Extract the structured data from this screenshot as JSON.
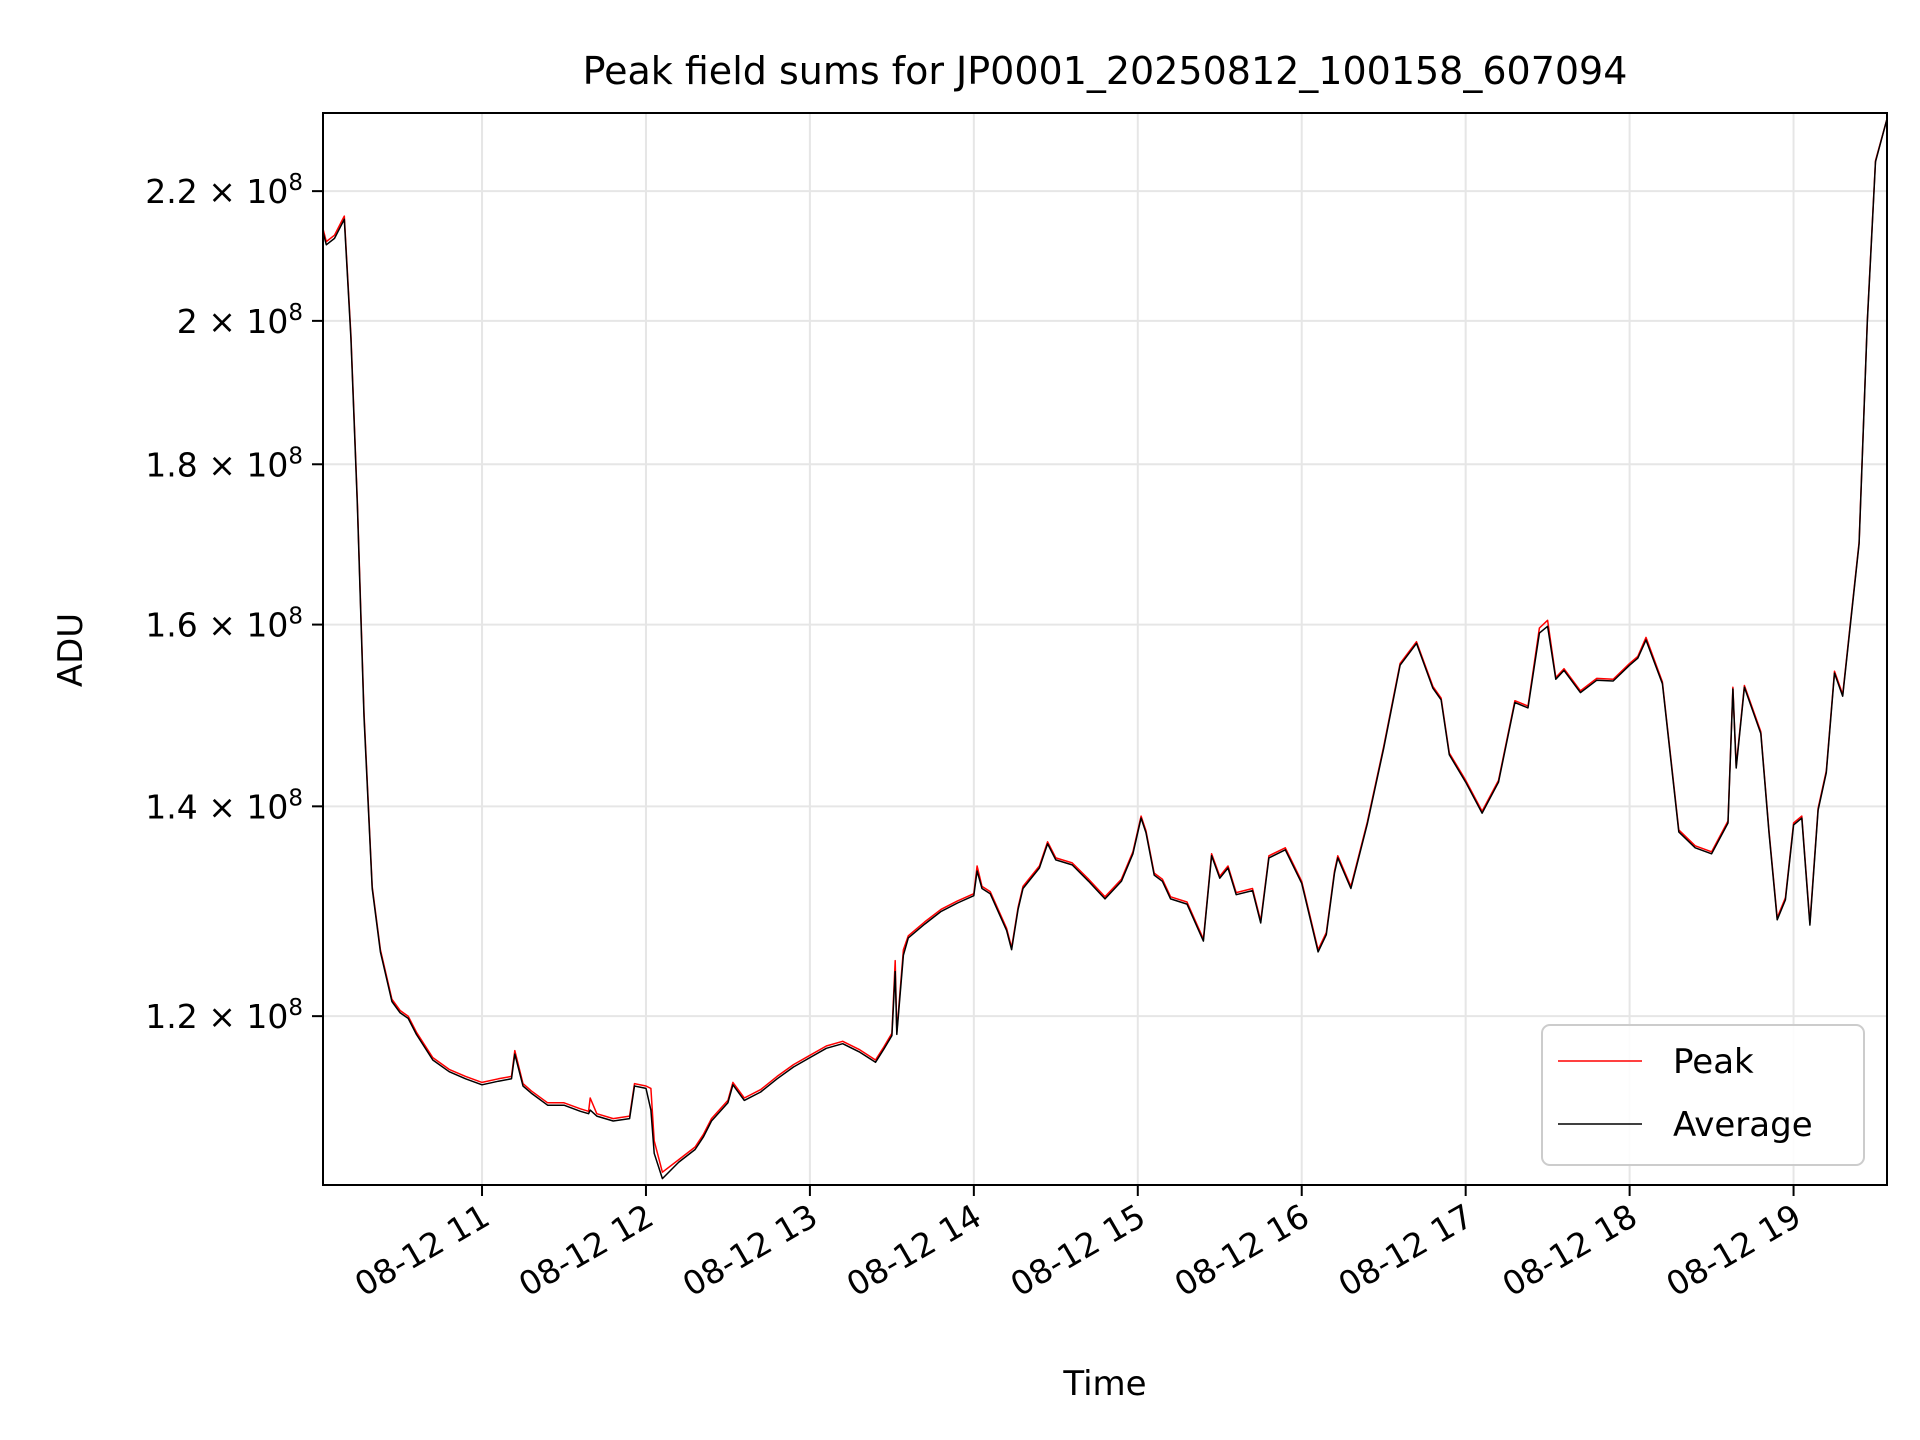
{
  "chart_data": {
    "type": "line",
    "title": "Peak field sums for JP0001_20250812_100158_607094",
    "xlabel": "Time",
    "ylabel": "ADU",
    "x_unit": "hour of 2025-08-12",
    "xlim": [
      10.03,
      19.57
    ],
    "x_ticks": [
      {
        "value": 11,
        "label": "08-12 11"
      },
      {
        "value": 12,
        "label": "08-12 12"
      },
      {
        "value": 13,
        "label": "08-12 13"
      },
      {
        "value": 14,
        "label": "08-12 14"
      },
      {
        "value": 15,
        "label": "08-12 15"
      },
      {
        "value": 16,
        "label": "08-12 16"
      },
      {
        "value": 17,
        "label": "08-12 17"
      },
      {
        "value": 18,
        "label": "08-12 18"
      },
      {
        "value": 19,
        "label": "08-12 19"
      }
    ],
    "y_scale": "log",
    "ylim": [
      106000000,
      233000000
    ],
    "y_ticks": [
      {
        "value": 120000000,
        "mantissa": "1.2",
        "exponent": "8"
      },
      {
        "value": 140000000,
        "mantissa": "1.4",
        "exponent": "8"
      },
      {
        "value": 160000000,
        "mantissa": "1.6",
        "exponent": "8"
      },
      {
        "value": 180000000,
        "mantissa": "1.8",
        "exponent": "8"
      },
      {
        "value": 200000000,
        "mantissa": "2",
        "exponent": "8"
      },
      {
        "value": 220000000,
        "mantissa": "2.2",
        "exponent": "8"
      }
    ],
    "grid": true,
    "legend_position": "lower-right",
    "series": [
      {
        "name": "Peak",
        "color": "#ff0000",
        "x": [
          10.03,
          10.05,
          10.1,
          10.16,
          10.2,
          10.24,
          10.28,
          10.33,
          10.38,
          10.45,
          10.5,
          10.55,
          10.6,
          10.7,
          10.8,
          10.9,
          11.0,
          11.1,
          11.18,
          11.2,
          11.25,
          11.3,
          11.4,
          11.5,
          11.6,
          11.65,
          11.66,
          11.7,
          11.8,
          11.9,
          11.93,
          12.0,
          12.03,
          12.05,
          12.1,
          12.2,
          12.3,
          12.35,
          12.4,
          12.5,
          12.53,
          12.6,
          12.7,
          12.8,
          12.9,
          13.0,
          13.1,
          13.2,
          13.3,
          13.4,
          13.45,
          13.5,
          13.52,
          13.53,
          13.57,
          13.6,
          13.7,
          13.8,
          13.9,
          14.0,
          14.02,
          14.05,
          14.1,
          14.2,
          14.23,
          14.27,
          14.3,
          14.4,
          14.45,
          14.5,
          14.6,
          14.7,
          14.8,
          14.9,
          14.97,
          15.02,
          15.05,
          15.1,
          15.15,
          15.2,
          15.3,
          15.4,
          15.45,
          15.5,
          15.55,
          15.6,
          15.7,
          15.75,
          15.8,
          15.9,
          16.0,
          16.1,
          16.15,
          16.2,
          16.22,
          16.3,
          16.4,
          16.5,
          16.6,
          16.7,
          16.8,
          16.85,
          16.9,
          17.0,
          17.1,
          17.2,
          17.3,
          17.38,
          17.45,
          17.5,
          17.55,
          17.6,
          17.7,
          17.8,
          17.9,
          18.0,
          18.05,
          18.1,
          18.2,
          18.3,
          18.4,
          18.5,
          18.6,
          18.63,
          18.65,
          18.7,
          18.8,
          18.85,
          18.9,
          18.95,
          19.0,
          19.05,
          19.1,
          19.15,
          19.2,
          19.25,
          19.3,
          19.4,
          19.45,
          19.5,
          19.57
        ],
        "values": [
          214000000,
          212000000,
          213000000,
          216000000,
          198000000,
          175000000,
          150000000,
          132000000,
          126000000,
          121500000,
          120500000,
          120000000,
          118600000,
          116400000,
          115400000,
          114800000,
          114300000,
          114600000,
          114800000,
          117000000,
          114200000,
          113600000,
          112600000,
          112600000,
          112100000,
          111900000,
          113000000,
          111700000,
          111300000,
          111500000,
          114200000,
          114000000,
          113800000,
          109500000,
          107000000,
          108000000,
          109000000,
          110000000,
          111300000,
          112800000,
          114300000,
          113000000,
          113700000,
          114800000,
          115800000,
          116600000,
          117400000,
          117800000,
          117100000,
          116200000,
          117300000,
          118500000,
          125000000,
          118600000,
          126000000,
          127300000,
          128600000,
          129800000,
          130600000,
          131300000,
          134000000,
          132000000,
          131500000,
          128000000,
          126200000,
          130000000,
          132000000,
          134000000,
          136400000,
          134800000,
          134300000,
          132700000,
          131000000,
          132700000,
          135400000,
          139000000,
          137500000,
          133300000,
          132700000,
          131000000,
          130500000,
          127000000,
          135200000,
          133000000,
          134000000,
          131400000,
          131800000,
          128700000,
          135000000,
          135800000,
          132500000,
          126000000,
          127600000,
          133500000,
          135000000,
          132000000,
          138400000,
          146300000,
          155500000,
          158000000,
          152900000,
          151600000,
          145600000,
          142700000,
          139500000,
          142700000,
          151300000,
          150700000,
          159600000,
          160500000,
          153900000,
          154900000,
          152400000,
          153800000,
          153700000,
          155500000,
          156300000,
          158500000,
          153400000,
          137600000,
          136000000,
          135400000,
          138500000,
          152800000,
          144200000,
          153000000,
          147900000,
          137500000,
          129000000,
          130900000,
          138300000,
          139000000,
          128500000,
          139800000,
          143700000,
          154600000,
          152000000,
          170000000,
          200000000,
          225000000,
          232000000
        ]
      },
      {
        "name": "Average",
        "color": "#000000",
        "x": [
          10.03,
          10.05,
          10.1,
          10.16,
          10.2,
          10.24,
          10.28,
          10.33,
          10.38,
          10.45,
          10.5,
          10.55,
          10.6,
          10.7,
          10.8,
          10.9,
          11.0,
          11.1,
          11.18,
          11.2,
          11.25,
          11.3,
          11.4,
          11.5,
          11.6,
          11.65,
          11.66,
          11.7,
          11.8,
          11.9,
          11.93,
          12.0,
          12.03,
          12.05,
          12.1,
          12.2,
          12.3,
          12.35,
          12.4,
          12.5,
          12.53,
          12.6,
          12.7,
          12.8,
          12.9,
          13.0,
          13.1,
          13.2,
          13.3,
          13.4,
          13.45,
          13.5,
          13.52,
          13.53,
          13.57,
          13.6,
          13.7,
          13.8,
          13.9,
          14.0,
          14.02,
          14.05,
          14.1,
          14.2,
          14.23,
          14.27,
          14.3,
          14.4,
          14.45,
          14.5,
          14.6,
          14.7,
          14.8,
          14.9,
          14.97,
          15.02,
          15.05,
          15.1,
          15.15,
          15.2,
          15.3,
          15.4,
          15.45,
          15.5,
          15.55,
          15.6,
          15.7,
          15.75,
          15.8,
          15.9,
          16.0,
          16.1,
          16.15,
          16.2,
          16.22,
          16.3,
          16.4,
          16.5,
          16.6,
          16.7,
          16.8,
          16.85,
          16.9,
          17.0,
          17.1,
          17.2,
          17.3,
          17.38,
          17.45,
          17.5,
          17.55,
          17.6,
          17.7,
          17.8,
          17.9,
          18.0,
          18.05,
          18.1,
          18.2,
          18.3,
          18.4,
          18.5,
          18.6,
          18.63,
          18.65,
          18.7,
          18.8,
          18.85,
          18.9,
          18.95,
          19.0,
          19.05,
          19.1,
          19.15,
          19.2,
          19.25,
          19.3,
          19.4,
          19.45,
          19.5,
          19.57
        ],
        "values": [
          213500000,
          211500000,
          212500000,
          215500000,
          197500000,
          174500000,
          149500000,
          131800000,
          125800000,
          121300000,
          120300000,
          119800000,
          118400000,
          116200000,
          115200000,
          114600000,
          114100000,
          114400000,
          114600000,
          116700000,
          114000000,
          113400000,
          112400000,
          112400000,
          111900000,
          111700000,
          112000000,
          111500000,
          111100000,
          111300000,
          114000000,
          113800000,
          112000000,
          108500000,
          106500000,
          107800000,
          108800000,
          109800000,
          111100000,
          112600000,
          114100000,
          112800000,
          113500000,
          114600000,
          115600000,
          116400000,
          117200000,
          117600000,
          116900000,
          116000000,
          117100000,
          118300000,
          124000000,
          118400000,
          125500000,
          127100000,
          128400000,
          129600000,
          130400000,
          131100000,
          133500000,
          131800000,
          131300000,
          127800000,
          126000000,
          129800000,
          131800000,
          133800000,
          136200000,
          134600000,
          134100000,
          132500000,
          130800000,
          132500000,
          135200000,
          138800000,
          137300000,
          133100000,
          132500000,
          130800000,
          130300000,
          126800000,
          135000000,
          132800000,
          133800000,
          131200000,
          131600000,
          128500000,
          134800000,
          135600000,
          132300000,
          125800000,
          127400000,
          133300000,
          134800000,
          131800000,
          138200000,
          146100000,
          155300000,
          157800000,
          152700000,
          151400000,
          145400000,
          142500000,
          139300000,
          142500000,
          151100000,
          150500000,
          159000000,
          159800000,
          153700000,
          154700000,
          152200000,
          153600000,
          153500000,
          155300000,
          156100000,
          158200000,
          153200000,
          137400000,
          135800000,
          135200000,
          138300000,
          152600000,
          144000000,
          152800000,
          147700000,
          137300000,
          128800000,
          130700000,
          138100000,
          138800000,
          128300000,
          139600000,
          143500000,
          154400000,
          151800000,
          169800000,
          199800000,
          224800000,
          232000000
        ]
      }
    ]
  }
}
